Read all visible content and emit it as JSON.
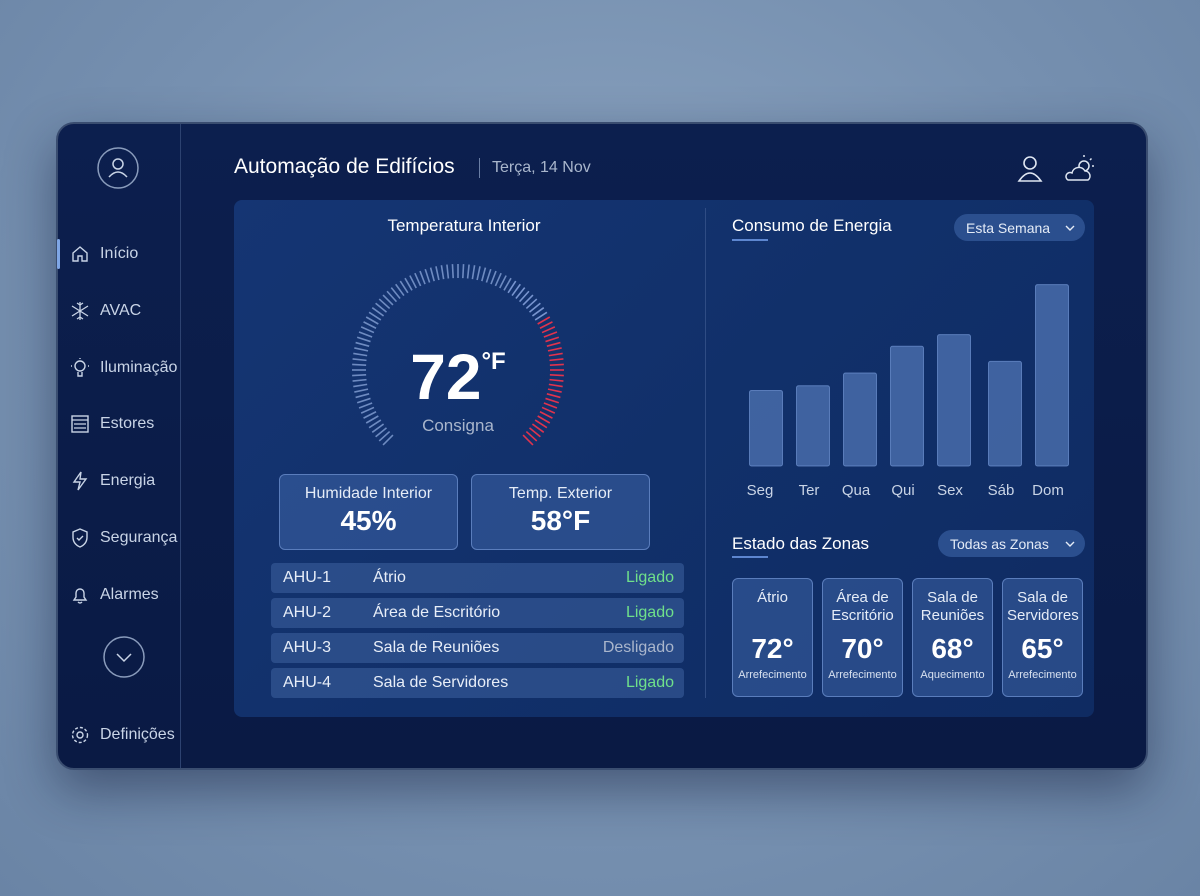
{
  "header": {
    "title": "Automação de Edifícios",
    "date": "Terça, 14 Nov"
  },
  "sidebar": {
    "items": [
      "Início",
      "AVAC",
      "Iluminação",
      "Estores",
      "Energia",
      "Segurança",
      "Alarmes"
    ],
    "settings": "Definições"
  },
  "temperature": {
    "title": "Temperatura Interior",
    "value": "72",
    "unit": "°F",
    "label": "Consigna"
  },
  "cards": [
    {
      "label": "Humidade Interior",
      "value": "45%"
    },
    {
      "label": "Temp. Exterior",
      "value": "58°F"
    }
  ],
  "ahu": [
    {
      "id": "AHU-1",
      "zone": "Átrio",
      "status": "Ligado",
      "color": "#6fe08a"
    },
    {
      "id": "AHU-2",
      "zone": "Área de Escritório",
      "status": "Ligado",
      "color": "#6fe08a"
    },
    {
      "id": "AHU-3",
      "zone": "Sala de Reuniões",
      "status": "Desligado",
      "color": "#aab6cc"
    },
    {
      "id": "AHU-4",
      "zone": "Sala de Servidores",
      "status": "Ligado",
      "color": "#6fe08a"
    }
  ],
  "chart_data": {
    "type": "bar",
    "title": "Consumo de Energia",
    "categories": [
      "Seg",
      "Ter",
      "Qua",
      "Qui",
      "Sex",
      "Sáb",
      "Dom"
    ],
    "values": [
      65,
      69,
      80,
      103,
      113,
      90,
      156
    ],
    "color": "#4f74b3",
    "ylim": [
      0,
      160
    ]
  },
  "energy_filter": "Esta Semana",
  "zones": {
    "title": "Estado das Zonas",
    "filter": "Todas as Zonas",
    "items": [
      {
        "name": "Átrio",
        "temp": "72°",
        "mode": "Arrefecimento"
      },
      {
        "name": "Área de Escritório",
        "temp": "70°",
        "mode": "Arrefecimento"
      },
      {
        "name": "Sala de Reuniões",
        "temp": "68°",
        "mode": "Aquecimento"
      },
      {
        "name": "Sala de Servidores",
        "temp": "65°",
        "mode": "Arrefecimento"
      }
    ]
  }
}
